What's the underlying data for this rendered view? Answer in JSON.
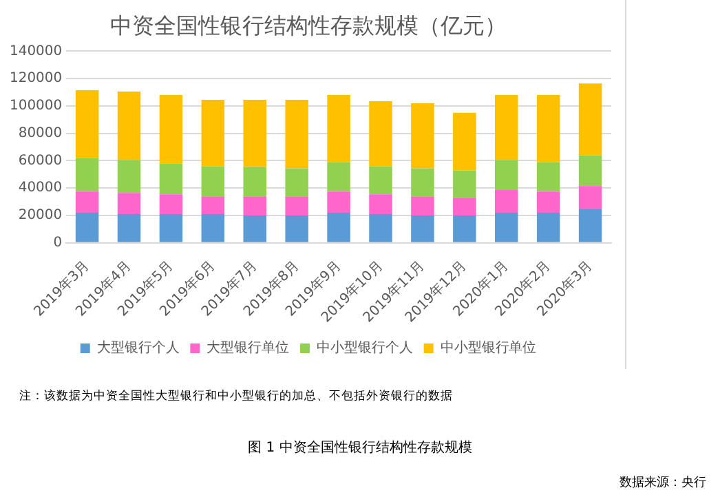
{
  "chart_data": {
    "type": "bar",
    "title": "中资全国性银行结构性存款规模（亿元）",
    "stacked": true,
    "categories": [
      "2019年3月",
      "2019年4月",
      "2019年5月",
      "2019年6月",
      "2019年7月",
      "2019年8月",
      "2019年9月",
      "2019年10月",
      "2019年11月",
      "2019年12月",
      "2020年1月",
      "2020年2月",
      "2020年3月"
    ],
    "series": [
      {
        "name": "大型银行个人",
        "color": "#5b9bd5",
        "values": [
          22000,
          21000,
          21000,
          21000,
          20000,
          20000,
          22000,
          21000,
          20000,
          20000,
          22000,
          22000,
          24500
        ]
      },
      {
        "name": "大型银行单位",
        "color": "#ff66cc",
        "values": [
          15500,
          15500,
          14500,
          13000,
          14000,
          14000,
          15500,
          14500,
          14000,
          13000,
          17000,
          15500,
          17000
        ]
      },
      {
        "name": "中小型银行个人",
        "color": "#92d050",
        "values": [
          24500,
          24000,
          22500,
          22000,
          21500,
          20500,
          21500,
          20500,
          20500,
          20000,
          21500,
          21500,
          22500
        ]
      },
      {
        "name": "中小型银行单位",
        "color": "#ffc000",
        "values": [
          49500,
          50000,
          50000,
          48500,
          49000,
          50000,
          49000,
          47500,
          47500,
          42000,
          47500,
          49000,
          52500
        ]
      }
    ],
    "ylim": [
      0,
      140000
    ],
    "yticks": [
      0,
      20000,
      40000,
      60000,
      80000,
      100000,
      120000,
      140000
    ],
    "grid": "y",
    "legend": "bottom",
    "annotations": [
      "注：该数据为中资全国性大型银行和中小型银行的加总、不包括外资银行的数据",
      "图 1 中资全国性银行结构性存款规模",
      "数据来源：央行"
    ]
  }
}
